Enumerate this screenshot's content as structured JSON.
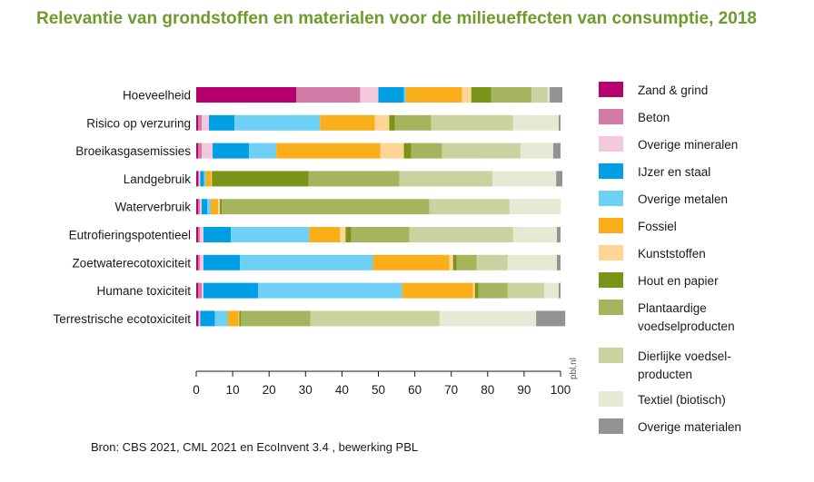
{
  "colors": {
    "title": "#6d9b2c",
    "series": [
      "#b5006e",
      "#d37aa7",
      "#f2c9dc",
      "#009fe3",
      "#6fd0f5",
      "#f9ae1a",
      "#fdd596",
      "#7a9417",
      "#a4b55e",
      "#c9d3a0",
      "#e6e9d3",
      "#939393"
    ]
  },
  "chart_data": {
    "type": "bar",
    "orientation": "horizontal",
    "stacked": true,
    "title": "Relevantie van grondstoffen en materialen voor de milieueffecten van consumptie, 2018",
    "categories": [
      "Hoeveelheid",
      "Risico op verzuring",
      "Broeikasgasemissies",
      "Landgebruik",
      "Waterverbruik",
      "Eutrofieringspotentieel",
      "Zoetwaterecotoxiciteit",
      "Humane toxiciteit",
      "Terrestrische ecotoxiciteit"
    ],
    "xlim": [
      0,
      100
    ],
    "xticks": [
      "0",
      "10",
      "20",
      "30",
      "40",
      "50",
      "60",
      "70",
      "80",
      "90",
      "100"
    ],
    "grid": false,
    "legend_position": "right",
    "legend": [
      "Zand & grind",
      "Beton",
      "Overige mineralen",
      "IJzer en staal",
      "Overige metalen",
      "Fossiel",
      "Kunststoffen",
      "Hout en papier",
      "Plantaardige voedselproducten",
      "Dierlijke voedselproducten",
      "Textiel (biotisch)",
      "Overige materialen"
    ],
    "legend_lines": [
      [
        "Zand & grind"
      ],
      [
        "Beton"
      ],
      [
        "Overige mineralen"
      ],
      [
        "IJzer en staal"
      ],
      [
        "Overige metalen"
      ],
      [
        "Fossiel"
      ],
      [
        "Kunststoffen"
      ],
      [
        "Hout en papier"
      ],
      [
        "Plantaardige",
        "voedselproducten"
      ],
      [
        "Dierlijke voedsel-",
        "producten"
      ],
      [
        "Textiel (biotisch)"
      ],
      [
        "Overige materialen"
      ]
    ],
    "series": [
      {
        "name": "Zand & grind",
        "values": [
          27.5,
          0.5,
          0.5,
          0.5,
          0.5,
          0.5,
          0.5,
          0.5,
          0.5
        ]
      },
      {
        "name": "Beton",
        "values": [
          17.5,
          1.0,
          1.0,
          0.3,
          0.5,
          0.5,
          0.5,
          1.0,
          0.3
        ]
      },
      {
        "name": "Overige mineralen",
        "values": [
          5.0,
          2.0,
          3.0,
          0.3,
          0.5,
          1.0,
          1.0,
          0.5,
          0.3
        ]
      },
      {
        "name": "IJzer en staal",
        "values": [
          7.0,
          7.0,
          10.0,
          1.0,
          1.5,
          7.5,
          10.0,
          15.0,
          4.0
        ]
      },
      {
        "name": "Overige metalen",
        "values": [
          0.5,
          23.5,
          7.5,
          0.5,
          1.0,
          21.5,
          36.5,
          39.5,
          3.5
        ]
      },
      {
        "name": "Fossiel",
        "values": [
          15.5,
          15.0,
          28.5,
          1.5,
          2.0,
          8.5,
          21.0,
          19.5,
          3.0
        ]
      },
      {
        "name": "Kunststoffen",
        "values": [
          2.5,
          4.0,
          6.5,
          0.2,
          0.5,
          1.5,
          1.0,
          0.5,
          0.2
        ]
      },
      {
        "name": "Hout en papier",
        "values": [
          5.5,
          1.5,
          2.0,
          26.5,
          0.5,
          1.5,
          1.0,
          1.0,
          0.5
        ]
      },
      {
        "name": "Plantaardige voedselproducten",
        "values": [
          11.0,
          10.0,
          8.5,
          25.0,
          57.0,
          16.0,
          5.5,
          8.0,
          19.0
        ]
      },
      {
        "name": "Dierlijke voedselproducten",
        "values": [
          4.5,
          22.5,
          21.5,
          25.5,
          22.0,
          28.5,
          8.5,
          10.0,
          35.5
        ]
      },
      {
        "name": "Textiel (biotisch)",
        "values": [
          0.5,
          12.5,
          9.0,
          17.5,
          14.0,
          12.0,
          13.5,
          4.0,
          26.5
        ]
      },
      {
        "name": "Overige materialen",
        "values": [
          3.5,
          0.5,
          2.0,
          1.7,
          0.0,
          1.0,
          1.0,
          0.5,
          8.0
        ]
      }
    ]
  },
  "source": "Bron: CBS 2021, CML 2021 en EcoInvent 3.4 , bewerking PBL",
  "credit": "pbl.nl"
}
